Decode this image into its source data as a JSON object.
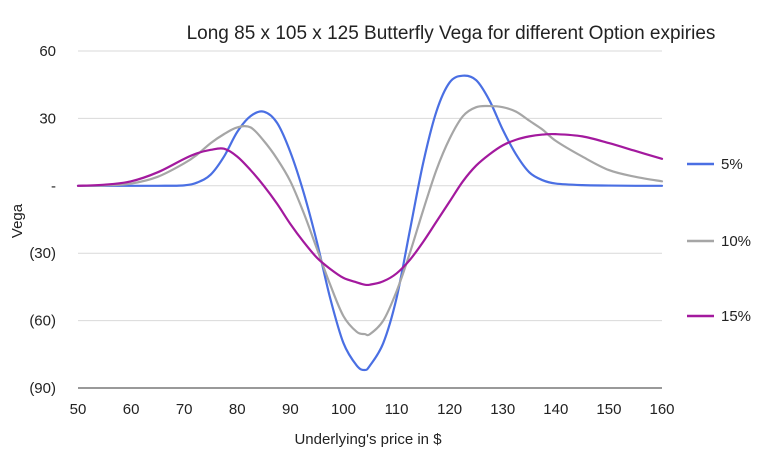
{
  "chart_data": {
    "type": "line",
    "title": "Long 85 x 105 x 125 Butterfly Vega for different Option expiries",
    "xlabel": "Underlying's price in $",
    "ylabel": "Vega",
    "xlim": [
      50,
      160
    ],
    "ylim": [
      -90,
      60
    ],
    "x_ticks": [
      50,
      60,
      70,
      80,
      90,
      100,
      110,
      120,
      130,
      140,
      150,
      160
    ],
    "x_tick_labels": [
      "50",
      "60",
      "70",
      "80",
      "90",
      "100",
      "110",
      "120",
      "130",
      "140",
      "150",
      "160"
    ],
    "y_ticks": [
      60,
      30,
      0,
      -30,
      -60,
      -90
    ],
    "y_tick_labels": [
      "60",
      "30",
      "-",
      "(30)",
      "(60)",
      "(90)"
    ],
    "grid": true,
    "legend_position": "right",
    "x": [
      50,
      55,
      60,
      65,
      70,
      72.5,
      75,
      77.5,
      80,
      82.5,
      85,
      87.5,
      90,
      92.5,
      95,
      97.5,
      100,
      102.5,
      104,
      105,
      107.5,
      110,
      112.5,
      115,
      117.5,
      120,
      122.5,
      125,
      127.5,
      130,
      132.5,
      135,
      137.5,
      140,
      145,
      150,
      155,
      160
    ],
    "series": [
      {
        "name": "5%",
        "color": "#4a6fe3",
        "values": [
          0,
          0,
          0,
          0,
          0.2,
          1.5,
          5,
          13,
          24,
          31,
          33,
          28,
          15,
          -3,
          -25,
          -50,
          -70,
          -80,
          -82,
          -80,
          -70,
          -50,
          -20,
          10,
          33,
          46,
          49,
          47,
          38,
          25,
          14,
          6,
          2.5,
          1,
          0.3,
          0.1,
          0,
          0
        ]
      },
      {
        "name": "10%",
        "color": "#a6a6a6",
        "values": [
          0,
          0.2,
          1,
          4,
          10,
          14,
          19,
          23,
          26,
          26,
          20,
          12,
          2,
          -12,
          -28,
          -44,
          -58,
          -65,
          -66,
          -66,
          -60,
          -47,
          -30,
          -11,
          7,
          21,
          31,
          35,
          35.5,
          35,
          33,
          29,
          25,
          20,
          13,
          7,
          4,
          2
        ]
      },
      {
        "name": "15%",
        "color": "#a3199e",
        "values": [
          0,
          0.5,
          2,
          6,
          12,
          14.5,
          16,
          16.5,
          13,
          7,
          0,
          -8,
          -17,
          -25,
          -32,
          -37,
          -41,
          -43,
          -44,
          -44,
          -42.5,
          -39,
          -33,
          -25,
          -16,
          -7,
          2,
          9,
          14,
          18,
          20.5,
          22,
          22.8,
          23,
          22,
          19,
          15.5,
          12
        ]
      }
    ]
  }
}
